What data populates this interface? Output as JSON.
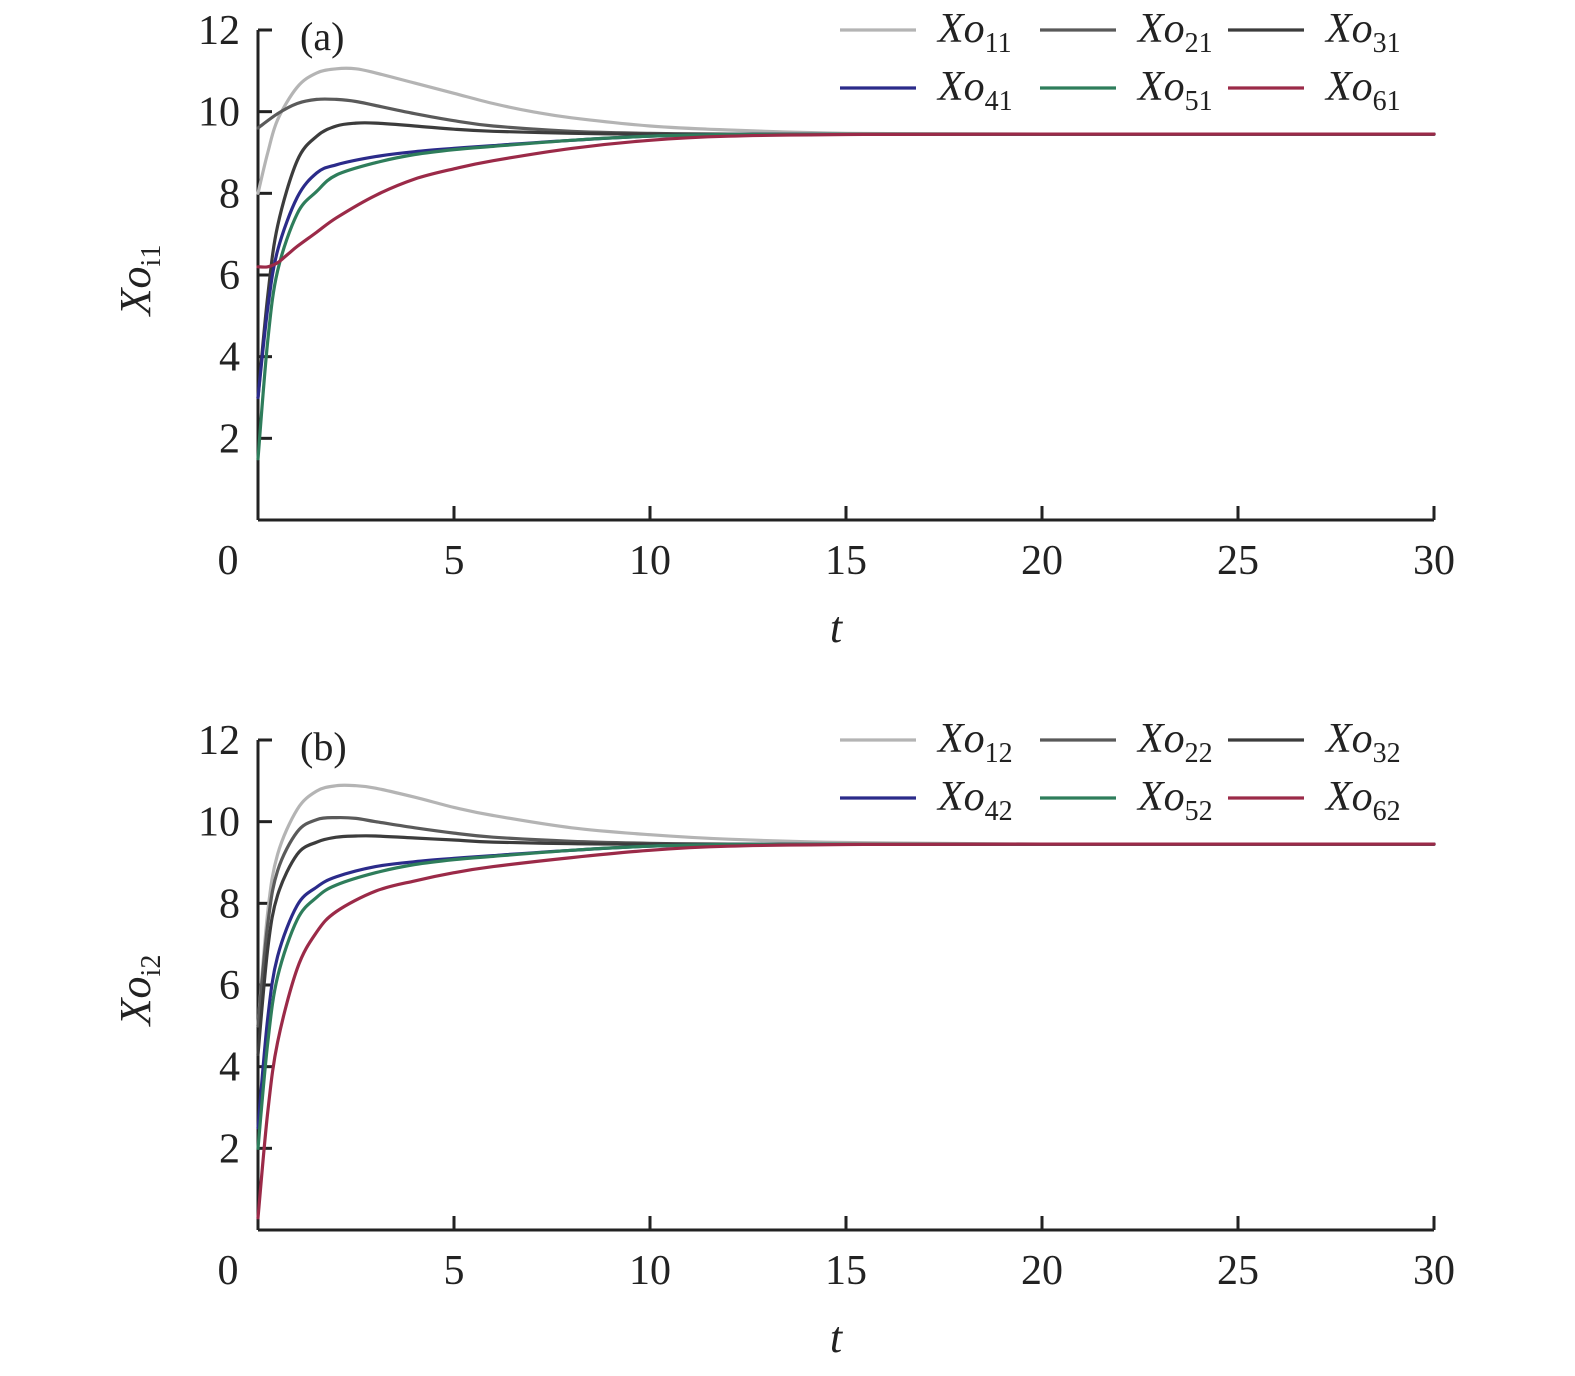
{
  "chart_data": [
    {
      "type": "line",
      "panel_label": "(a)",
      "xlabel": "t",
      "ylabel": "Xo",
      "ylabel_sub": "i1",
      "xlim": [
        0,
        30
      ],
      "ylim": [
        0,
        12
      ],
      "xticks": [
        0,
        5,
        10,
        15,
        20,
        25,
        30
      ],
      "yticks": [
        2,
        4,
        6,
        8,
        10,
        12
      ],
      "legend_position": "top-right",
      "series": [
        {
          "name": "Xo",
          "sub": "11",
          "color": "#b4b4b4",
          "x": [
            0,
            0.25,
            0.5,
            1,
            1.5,
            2,
            2.5,
            3,
            4,
            5,
            6,
            7,
            8,
            10,
            12,
            15,
            20,
            30
          ],
          "values": [
            8.0,
            9.0,
            9.8,
            10.6,
            10.95,
            11.05,
            11.05,
            10.95,
            10.7,
            10.45,
            10.2,
            10.0,
            9.85,
            9.65,
            9.55,
            9.47,
            9.45,
            9.45
          ]
        },
        {
          "name": "Xo",
          "sub": "21",
          "color": "#5a5a5a",
          "x": [
            0,
            0.5,
            1,
            1.5,
            2,
            2.5,
            3,
            4,
            5,
            6,
            8,
            10,
            12,
            15,
            20,
            30
          ],
          "values": [
            9.6,
            9.95,
            10.2,
            10.3,
            10.3,
            10.25,
            10.15,
            9.95,
            9.78,
            9.65,
            9.52,
            9.47,
            9.45,
            9.45,
            9.45,
            9.45
          ]
        },
        {
          "name": "Xo",
          "sub": "31",
          "color": "#3c3c3c",
          "x": [
            0,
            0.25,
            0.5,
            1,
            1.5,
            2,
            2.5,
            3,
            4,
            5,
            6,
            8,
            10,
            12,
            15,
            20,
            30
          ],
          "values": [
            3.0,
            5.5,
            7.2,
            8.8,
            9.4,
            9.65,
            9.72,
            9.72,
            9.65,
            9.57,
            9.52,
            9.47,
            9.45,
            9.45,
            9.45,
            9.45,
            9.45
          ]
        },
        {
          "name": "Xo",
          "sub": "41",
          "color": "#2b2b8a",
          "x": [
            0,
            0.25,
            0.5,
            1,
            1.5,
            2,
            3,
            4,
            5,
            6,
            8,
            10,
            12,
            15,
            20,
            30
          ],
          "values": [
            3.0,
            5.2,
            6.6,
            7.9,
            8.5,
            8.7,
            8.9,
            9.02,
            9.1,
            9.17,
            9.3,
            9.4,
            9.44,
            9.45,
            9.45,
            9.45
          ]
        },
        {
          "name": "Xo",
          "sub": "51",
          "color": "#2e7d5b",
          "x": [
            0,
            0.25,
            0.5,
            1,
            1.5,
            2,
            3,
            4,
            5,
            6,
            8,
            10,
            12,
            15,
            20,
            30
          ],
          "values": [
            1.5,
            4.4,
            6.1,
            7.5,
            8.05,
            8.45,
            8.75,
            8.95,
            9.07,
            9.15,
            9.3,
            9.4,
            9.44,
            9.45,
            9.45,
            9.45
          ]
        },
        {
          "name": "Xo",
          "sub": "61",
          "color": "#9b2a48",
          "x": [
            0,
            0.25,
            0.5,
            0.75,
            1,
            1.5,
            2,
            3,
            4,
            5,
            6,
            8,
            10,
            12,
            15,
            20,
            30
          ],
          "values": [
            6.2,
            6.2,
            6.3,
            6.5,
            6.7,
            7.05,
            7.4,
            7.95,
            8.35,
            8.6,
            8.8,
            9.1,
            9.3,
            9.4,
            9.44,
            9.45,
            9.45
          ]
        }
      ]
    },
    {
      "type": "line",
      "panel_label": "(b)",
      "xlabel": "t",
      "ylabel": "Xo",
      "ylabel_sub": "i2",
      "xlim": [
        0,
        30
      ],
      "ylim": [
        0,
        12
      ],
      "xticks": [
        0,
        5,
        10,
        15,
        20,
        25,
        30
      ],
      "yticks": [
        2,
        4,
        6,
        8,
        10,
        12
      ],
      "legend_position": "top-right",
      "series": [
        {
          "name": "Xo",
          "sub": "12",
          "color": "#b4b4b4",
          "x": [
            0,
            0.25,
            0.5,
            1,
            1.5,
            2,
            2.5,
            3,
            4,
            5,
            6,
            8,
            10,
            12,
            15,
            20,
            30
          ],
          "values": [
            5.0,
            7.8,
            9.2,
            10.3,
            10.75,
            10.88,
            10.88,
            10.82,
            10.6,
            10.35,
            10.15,
            9.85,
            9.68,
            9.57,
            9.49,
            9.45,
            9.45
          ]
        },
        {
          "name": "Xo",
          "sub": "22",
          "color": "#5a5a5a",
          "x": [
            0,
            0.25,
            0.5,
            1,
            1.5,
            2,
            2.5,
            3,
            4,
            5,
            6,
            8,
            10,
            12,
            15,
            20,
            30
          ],
          "values": [
            5.0,
            7.5,
            8.8,
            9.75,
            10.05,
            10.1,
            10.08,
            10.0,
            9.85,
            9.72,
            9.62,
            9.52,
            9.47,
            9.45,
            9.45,
            9.45,
            9.45
          ]
        },
        {
          "name": "Xo",
          "sub": "32",
          "color": "#3c3c3c",
          "x": [
            0,
            0.25,
            0.5,
            1,
            1.5,
            2,
            2.5,
            3,
            4,
            5,
            6,
            8,
            10,
            12,
            15,
            20,
            30
          ],
          "values": [
            4.3,
            6.9,
            8.2,
            9.2,
            9.5,
            9.62,
            9.65,
            9.65,
            9.6,
            9.55,
            9.5,
            9.46,
            9.45,
            9.45,
            9.45,
            9.45,
            9.45
          ]
        },
        {
          "name": "Xo",
          "sub": "42",
          "color": "#2b2b8a",
          "x": [
            0,
            0.25,
            0.5,
            1,
            1.5,
            2,
            3,
            4,
            5,
            6,
            8,
            10,
            12,
            15,
            20,
            30
          ],
          "values": [
            2.5,
            5.2,
            6.7,
            7.95,
            8.4,
            8.65,
            8.9,
            9.02,
            9.1,
            9.17,
            9.3,
            9.4,
            9.44,
            9.45,
            9.45,
            9.45
          ]
        },
        {
          "name": "Xo",
          "sub": "52",
          "color": "#2e7d5b",
          "x": [
            0,
            0.25,
            0.5,
            1,
            1.5,
            2,
            3,
            4,
            5,
            6,
            8,
            10,
            12,
            15,
            20,
            30
          ],
          "values": [
            2.0,
            4.6,
            6.2,
            7.6,
            8.15,
            8.45,
            8.75,
            8.95,
            9.07,
            9.15,
            9.3,
            9.4,
            9.44,
            9.45,
            9.45,
            9.45
          ]
        },
        {
          "name": "Xo",
          "sub": "62",
          "color": "#9b2a48",
          "x": [
            0,
            0.25,
            0.5,
            1,
            1.5,
            2,
            3,
            4,
            5,
            6,
            8,
            10,
            12,
            15,
            20,
            30
          ],
          "values": [
            0.3,
            2.9,
            4.6,
            6.4,
            7.3,
            7.8,
            8.3,
            8.55,
            8.75,
            8.9,
            9.12,
            9.3,
            9.4,
            9.44,
            9.45,
            9.45
          ]
        }
      ]
    }
  ]
}
